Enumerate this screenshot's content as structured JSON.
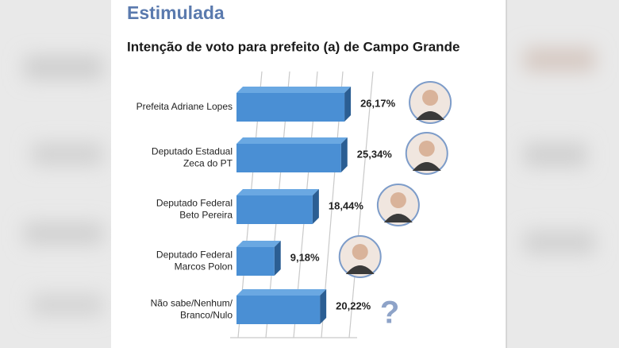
{
  "chart_data": {
    "type": "bar3d",
    "title": "Estimulada",
    "subtitle": "Intenção de voto para prefeito (a) de Campo Grande",
    "categories": [
      [
        "Prefeita Adriane Lopes"
      ],
      [
        "Deputado Estadual",
        "Zeca do PT"
      ],
      [
        "Deputado Federal",
        "Beto Pereira"
      ],
      [
        "Deputado Federal",
        "Marcos Polon"
      ],
      [
        "Não sabe/Nenhum/",
        "Branco/Nulo"
      ]
    ],
    "values": [
      26.17,
      25.34,
      18.44,
      9.18,
      20.22
    ],
    "value_labels": [
      "26,17%",
      "25,34%",
      "18,44%",
      "9,18%",
      "20,22%"
    ],
    "color": "#4a8fd4",
    "undecided_icon": "?"
  }
}
